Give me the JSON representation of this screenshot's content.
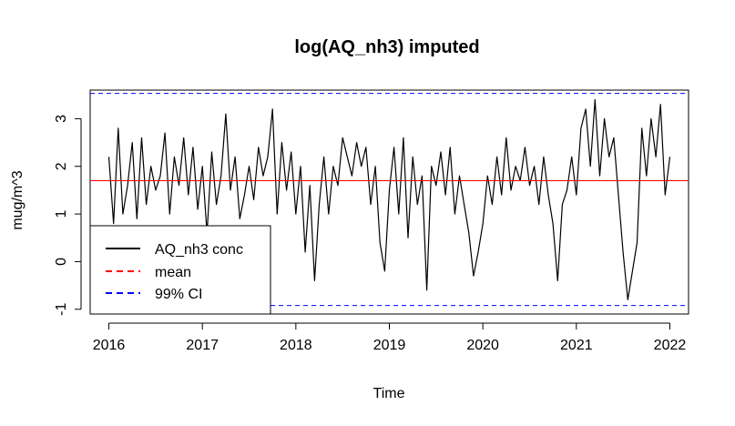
{
  "chart_data": {
    "type": "line",
    "title": "log(AQ_nh3) imputed",
    "xlabel": "Time",
    "ylabel": "mug/m^3",
    "xlim": [
      2015.8,
      2022.2
    ],
    "ylim": [
      -1.1,
      3.6
    ],
    "x_ticks": [
      2016,
      2017,
      2018,
      2019,
      2020,
      2021,
      2022
    ],
    "x_tick_labels": [
      "2016",
      "2017",
      "2018",
      "2019",
      "2020",
      "2021",
      "2022"
    ],
    "y_ticks": [
      -1,
      0,
      1,
      2,
      3
    ],
    "y_tick_labels": [
      "-1",
      "0",
      "1",
      "2",
      "3"
    ],
    "grid": false,
    "legend_position": "bottom-left",
    "mean": 1.7,
    "ci_lower": -0.92,
    "ci_upper": 3.53,
    "series": [
      {
        "name": "AQ_nh3 conc",
        "color": "#000000",
        "style": "solid",
        "x": [
          2016.0,
          2016.05,
          2016.1,
          2016.15,
          2016.2,
          2016.25,
          2016.3,
          2016.35,
          2016.4,
          2016.45,
          2016.5,
          2016.55,
          2016.6,
          2016.65,
          2016.7,
          2016.75,
          2016.8,
          2016.85,
          2016.9,
          2016.95,
          2017.0,
          2017.05,
          2017.1,
          2017.15,
          2017.2,
          2017.25,
          2017.3,
          2017.35,
          2017.4,
          2017.45,
          2017.5,
          2017.55,
          2017.6,
          2017.65,
          2017.7,
          2017.75,
          2017.8,
          2017.85,
          2017.9,
          2017.95,
          2018.0,
          2018.05,
          2018.1,
          2018.15,
          2018.2,
          2018.25,
          2018.3,
          2018.35,
          2018.4,
          2018.45,
          2018.5,
          2018.55,
          2018.6,
          2018.65,
          2018.7,
          2018.75,
          2018.8,
          2018.85,
          2018.9,
          2018.95,
          2019.0,
          2019.05,
          2019.1,
          2019.15,
          2019.2,
          2019.25,
          2019.3,
          2019.35,
          2019.4,
          2019.45,
          2019.5,
          2019.55,
          2019.6,
          2019.65,
          2019.7,
          2019.75,
          2019.8,
          2019.85,
          2019.9,
          2019.95,
          2020.0,
          2020.05,
          2020.1,
          2020.15,
          2020.2,
          2020.25,
          2020.3,
          2020.35,
          2020.4,
          2020.45,
          2020.5,
          2020.55,
          2020.6,
          2020.65,
          2020.7,
          2020.75,
          2020.8,
          2020.85,
          2020.9,
          2020.95,
          2021.0,
          2021.05,
          2021.1,
          2021.15,
          2021.2,
          2021.25,
          2021.3,
          2021.35,
          2021.4,
          2021.45,
          2021.5,
          2021.55,
          2021.6,
          2021.65,
          2021.7,
          2021.75,
          2021.8,
          2021.85,
          2021.9,
          2021.95,
          2022.0
        ],
        "values": [
          2.2,
          0.8,
          2.8,
          1.0,
          1.6,
          2.5,
          0.9,
          2.6,
          1.2,
          2.0,
          1.5,
          1.8,
          2.7,
          1.0,
          2.2,
          1.6,
          2.6,
          1.4,
          2.4,
          1.1,
          2.0,
          0.6,
          2.3,
          1.2,
          1.8,
          3.1,
          1.5,
          2.2,
          0.9,
          1.4,
          2.0,
          1.3,
          2.4,
          1.8,
          2.2,
          3.2,
          1.0,
          2.5,
          1.5,
          2.3,
          1.0,
          2.0,
          0.2,
          1.6,
          -0.4,
          1.2,
          2.2,
          1.0,
          2.0,
          1.6,
          2.6,
          2.2,
          1.8,
          2.5,
          2.0,
          2.4,
          1.2,
          2.0,
          0.4,
          -0.2,
          1.5,
          2.4,
          1.0,
          2.6,
          0.5,
          2.2,
          1.2,
          1.8,
          -0.6,
          2.0,
          1.6,
          2.3,
          1.4,
          2.4,
          1.0,
          1.8,
          1.2,
          0.6,
          -0.3,
          0.2,
          0.8,
          1.8,
          1.2,
          2.2,
          1.4,
          2.6,
          1.5,
          2.0,
          1.7,
          2.4,
          1.6,
          2.0,
          1.2,
          2.2,
          1.4,
          0.8,
          -0.4,
          1.2,
          1.5,
          2.2,
          1.4,
          2.8,
          3.2,
          2.0,
          3.4,
          1.8,
          3.0,
          2.2,
          2.6,
          1.4,
          0.2,
          -0.8,
          -0.2,
          0.4,
          2.8,
          1.8,
          3.0,
          2.2,
          3.3,
          1.4,
          2.2
        ]
      },
      {
        "name": "mean",
        "color": "#ff0000",
        "style": "dashed"
      },
      {
        "name": "99% CI",
        "color": "#0000ff",
        "style": "dashed"
      }
    ]
  }
}
